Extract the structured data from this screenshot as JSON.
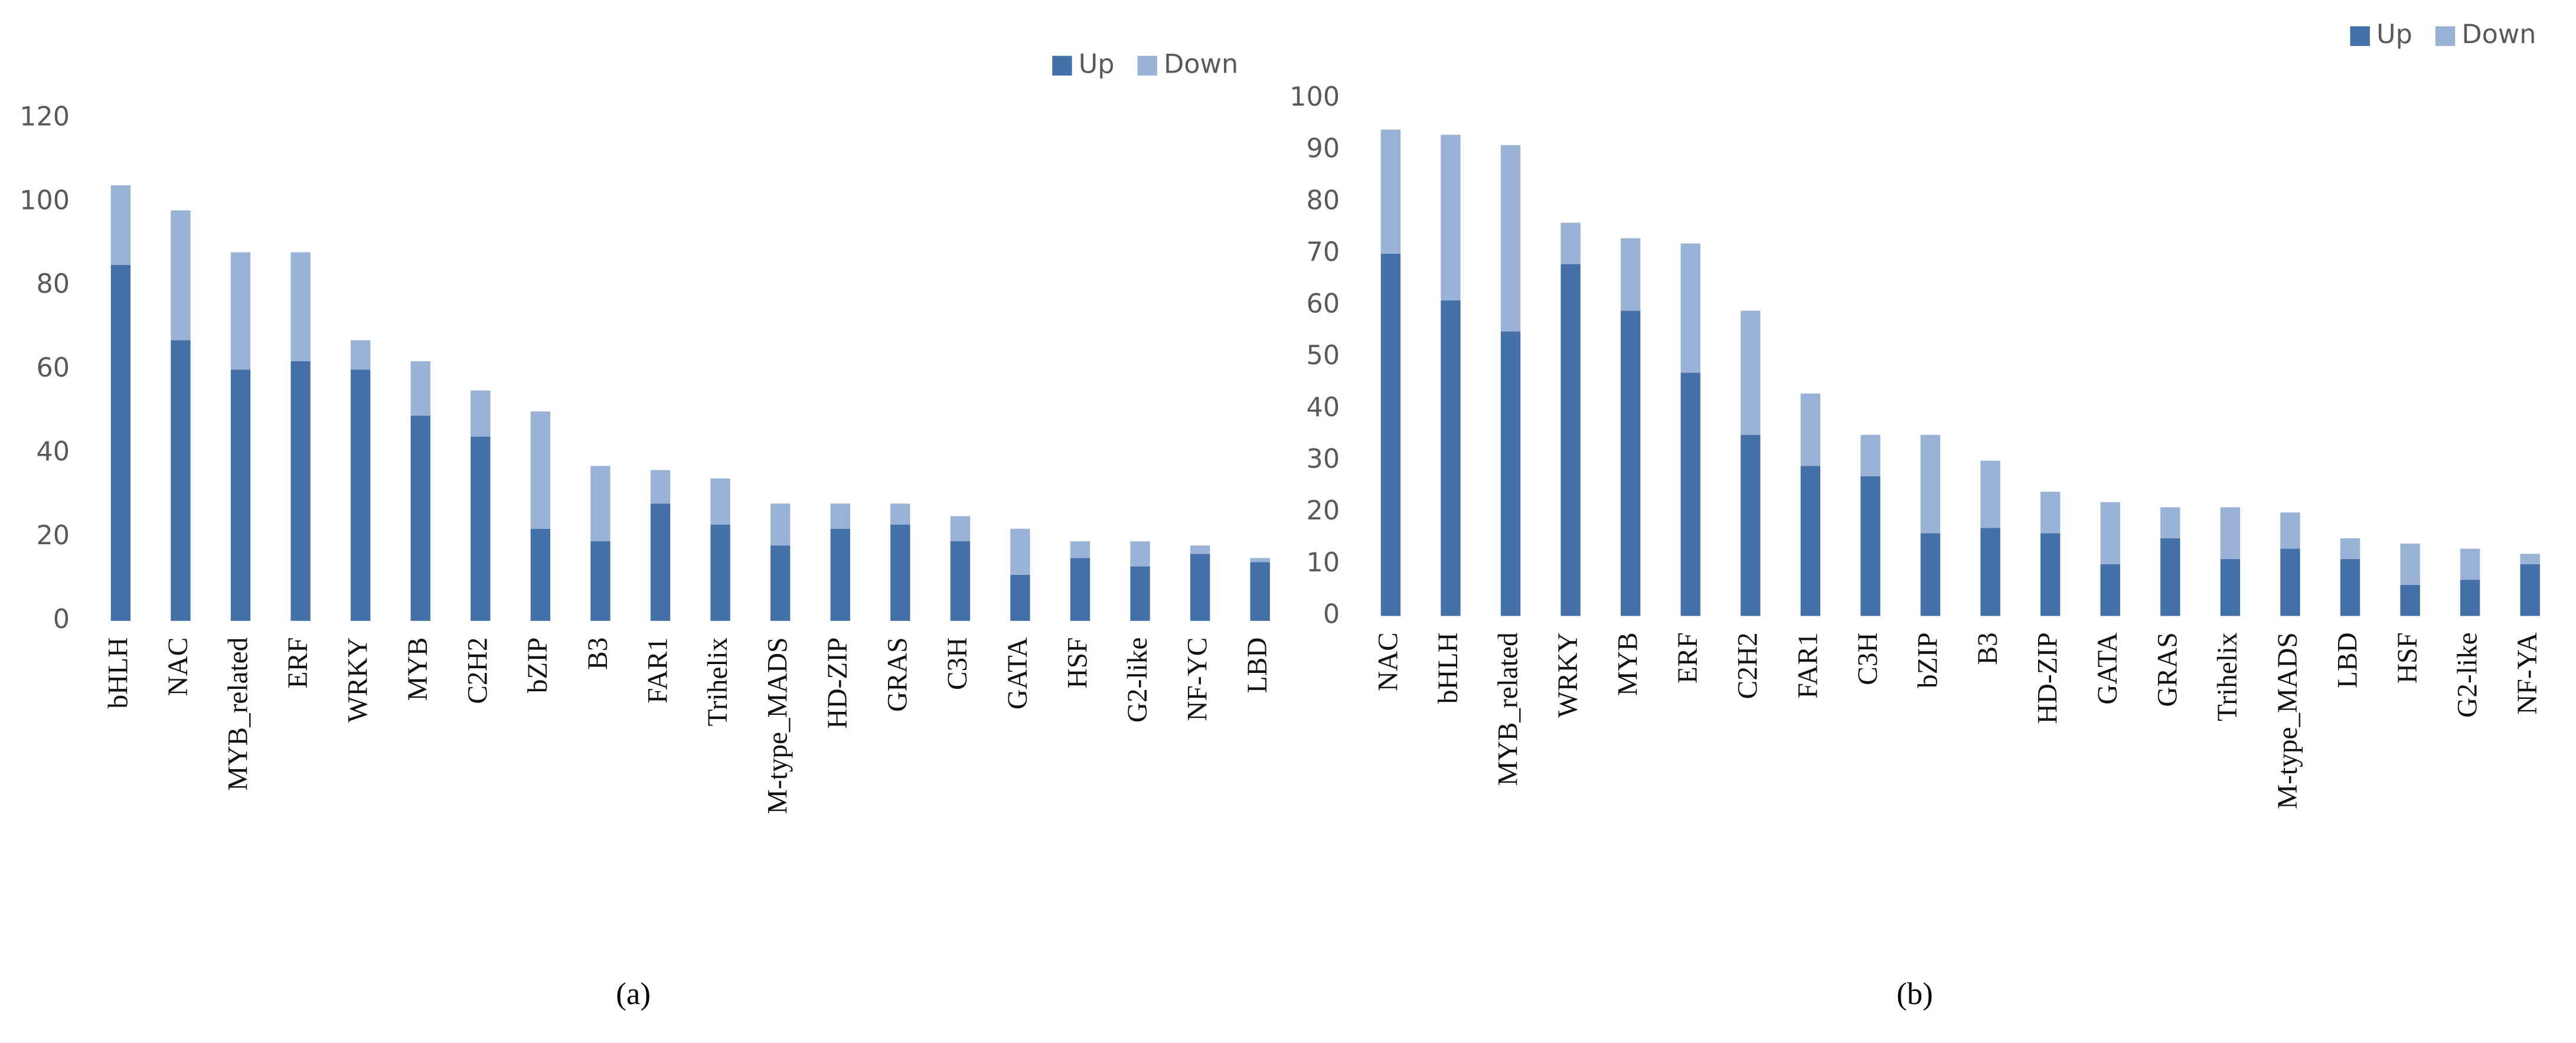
{
  "chart_data": [
    {
      "type": "bar",
      "stacked": true,
      "label": "(a)",
      "categories": [
        "bHLH",
        "NAC",
        "MYB_related",
        "ERF",
        "WRKY",
        "MYB",
        "C2H2",
        "bZIP",
        "B3",
        "FAR1",
        "Trihelix",
        "M-type_MADS",
        "HD-ZIP",
        "GRAS",
        "C3H",
        "GATA",
        "HSF",
        "G2-like",
        "NF-YC",
        "LBD"
      ],
      "series": [
        {
          "name": "Up",
          "color": "#4470a8",
          "values": [
            85,
            67,
            60,
            62,
            60,
            49,
            44,
            22,
            19,
            28,
            23,
            18,
            22,
            23,
            19,
            11,
            15,
            13,
            16,
            14
          ]
        },
        {
          "name": "Down",
          "color": "#9ab2d6",
          "values": [
            19,
            31,
            28,
            26,
            7,
            13,
            11,
            28,
            18,
            8,
            11,
            10,
            6,
            5,
            6,
            11,
            4,
            6,
            2,
            1
          ]
        }
      ],
      "ylim": [
        0,
        120
      ],
      "yticks": [
        0,
        20,
        40,
        60,
        80,
        100,
        120
      ],
      "grid": false,
      "legend": "top-right"
    },
    {
      "type": "bar",
      "stacked": true,
      "label": "(b)",
      "categories": [
        "NAC",
        "bHLH",
        "MYB_related",
        "WRKY",
        "MYB",
        "ERF",
        "C2H2",
        "FAR1",
        "C3H",
        "bZIP",
        "B3",
        "HD-ZIP",
        "GATA",
        "GRAS",
        "Trihelix",
        "M-type_MADS",
        "LBD",
        "HSF",
        "G2-like",
        "NF-YA"
      ],
      "series": [
        {
          "name": "Up",
          "color": "#4470a8",
          "values": [
            70,
            61,
            55,
            68,
            59,
            47,
            35,
            29,
            27,
            16,
            17,
            16,
            10,
            15,
            11,
            13,
            11,
            6,
            7,
            10
          ]
        },
        {
          "name": "Down",
          "color": "#9ab2d6",
          "values": [
            24,
            32,
            36,
            8,
            14,
            25,
            24,
            14,
            8,
            19,
            13,
            8,
            12,
            6,
            10,
            7,
            4,
            8,
            6,
            2
          ]
        }
      ],
      "ylim": [
        0,
        100
      ],
      "yticks": [
        0,
        10,
        20,
        30,
        40,
        50,
        60,
        70,
        80,
        90,
        100
      ],
      "grid": false,
      "legend": "top-right"
    }
  ]
}
